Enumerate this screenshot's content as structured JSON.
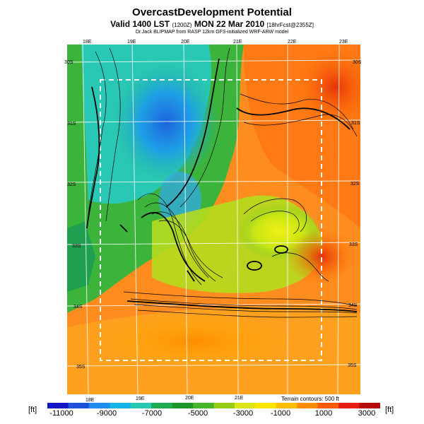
{
  "header": {
    "title": "OvercastDevelopment Potential",
    "subtitle_main": "Valid 1400 LST",
    "subtitle_small": "(1200Z)",
    "subtitle_date": "MON 22 Mar 2010",
    "subtitle_forecast": "[18hrFcst@2355Z]",
    "credit": "Dr.Jack BLIPMAP from RASP 12km GFS-initialized WRF-ARW model"
  },
  "map": {
    "top_lon_labels": [
      "18E",
      "19E",
      "20E",
      "21E",
      "22E",
      "23E"
    ],
    "bottom_lon_labels": [
      "18E",
      "19E",
      "20E",
      "21E"
    ],
    "left_lat_labels": [
      "30S",
      "31S",
      "32S",
      "33S",
      "34S",
      "35S"
    ],
    "right_lat_labels": [
      "30S",
      "31S",
      "32S",
      "33S",
      "34S",
      "35S"
    ],
    "terrain_note": "Terrain contours: 500 ft"
  },
  "colorbar": {
    "unit_left": "[ft]",
    "unit_right": "[ft]",
    "labels": [
      "-11000",
      "-9000",
      "-7000",
      "-5000",
      "-3000",
      "-1000",
      "1000",
      "3000"
    ],
    "colors": [
      "#1414c8",
      "#1e50dc",
      "#1e8cf0",
      "#14b4e6",
      "#28c8b4",
      "#1eaa50",
      "#1e9628",
      "#46b428",
      "#96cd14",
      "#dce614",
      "#ffe600",
      "#ffbe00",
      "#ff8c00",
      "#ff5a00",
      "#e61e14",
      "#b40a0a"
    ]
  }
}
